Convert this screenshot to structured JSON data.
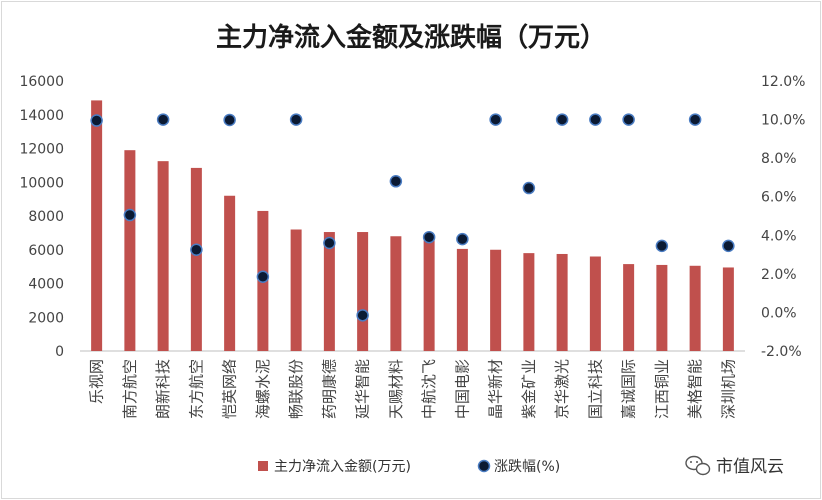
{
  "chart_data": {
    "type": "bar+scatter",
    "title": "主力净流入金额及涨跌幅（万元）",
    "categories": [
      "乐视网",
      "南方航空",
      "朗新科技",
      "东方航空",
      "恺英网络",
      "海螺水泥",
      "畅联股份",
      "药明康德",
      "延华智能",
      "天赐材料",
      "中航沈飞",
      "中国电影",
      "晶华新材",
      "紫金矿业",
      "京华激光",
      "国立科技",
      "嘉诚国际",
      "江西铜业",
      "美格智能",
      "深圳机场"
    ],
    "series": [
      {
        "name": "主力净流入金额(万元)",
        "axis": "left",
        "kind": "bar",
        "color": "#c0504d",
        "values": [
          14850,
          11900,
          11250,
          10850,
          9200,
          8300,
          7200,
          7050,
          7050,
          6800,
          6550,
          6050,
          6000,
          5800,
          5750,
          5600,
          5150,
          5100,
          5050,
          4950
        ]
      },
      {
        "name": "涨跌幅(%)",
        "axis": "right",
        "kind": "scatter",
        "color": "#0b1a33",
        "values": [
          9.95,
          5.05,
          10.0,
          3.25,
          9.98,
          1.85,
          10.0,
          3.6,
          -0.15,
          6.8,
          3.9,
          3.8,
          10.0,
          6.45,
          10.0,
          10.0,
          10.0,
          3.45,
          10.0,
          3.45
        ]
      }
    ],
    "left_axis": {
      "ylim": [
        0,
        16000
      ],
      "ticks": [
        "0",
        "2000",
        "4000",
        "6000",
        "8000",
        "10000",
        "12000",
        "14000",
        "16000"
      ]
    },
    "right_axis": {
      "ylim": [
        -2,
        12
      ],
      "ticks": [
        "-2.0%",
        "0.0%",
        "2.0%",
        "4.0%",
        "6.0%",
        "8.0%",
        "10.0%",
        "12.0%"
      ]
    },
    "legend": [
      "主力净流入金额(万元)",
      "涨跌幅(%)"
    ],
    "legend_position": "bottom",
    "grid": false
  },
  "watermark": {
    "icon": "wechat-icon",
    "text": "市值风云"
  }
}
